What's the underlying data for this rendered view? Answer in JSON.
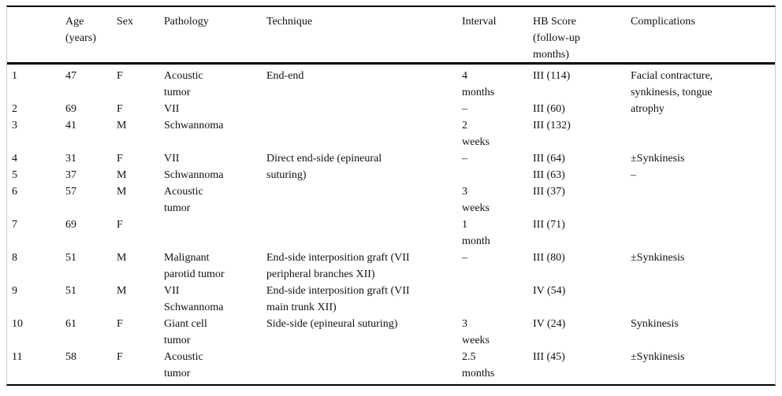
{
  "table": {
    "title": "Patient outcomes table",
    "header_columns": [
      {
        "key": "num",
        "lines": []
      },
      {
        "key": "age",
        "lines": [
          "Age",
          "(years)"
        ]
      },
      {
        "key": "sex",
        "lines": [
          "Sex"
        ]
      },
      {
        "key": "pathology",
        "lines": [
          "Pathology"
        ]
      },
      {
        "key": "technique",
        "lines": [
          "Technique"
        ]
      },
      {
        "key": "interval",
        "lines": [
          "Interval"
        ]
      },
      {
        "key": "hb_score",
        "lines": [
          "HB Score",
          "(follow-up",
          "months)"
        ]
      },
      {
        "key": "complications",
        "lines": [
          "Complications"
        ]
      }
    ],
    "body_lines": [
      [
        "1",
        "47",
        "F",
        "Acoustic",
        "End-end",
        "4",
        "III (114)",
        "Facial contracture,"
      ],
      [
        "",
        "",
        "",
        "tumor",
        "",
        "months",
        "",
        "synkinesis, tongue"
      ],
      [
        "2",
        "69",
        "F",
        "VII",
        "",
        "–",
        "III (60)",
        "atrophy"
      ],
      [
        "3",
        "41",
        "M",
        "Schwannoma",
        "",
        "2",
        "III (132)",
        ""
      ],
      [
        "",
        "",
        "",
        "",
        "",
        "weeks",
        "",
        ""
      ],
      [
        "4",
        "31",
        "F",
        "VII",
        "Direct end-side (epineural",
        "–",
        "III (64)",
        "±Synkinesis"
      ],
      [
        "5",
        "37",
        "M",
        "Schwannoma",
        "suturing)",
        "",
        "III (63)",
        "–"
      ],
      [
        "6",
        "57",
        "M",
        "Acoustic",
        "",
        "3",
        "III (37)",
        ""
      ],
      [
        "",
        "",
        "",
        "tumor",
        "",
        "weeks",
        "",
        ""
      ],
      [
        "7",
        "69",
        "F",
        "",
        "",
        "1",
        "III (71)",
        ""
      ],
      [
        "",
        "",
        "",
        "",
        "",
        "month",
        "",
        ""
      ],
      [
        "8",
        "51",
        "M",
        "Malignant",
        "End-side interposition graft (VII",
        "–",
        "III (80)",
        "±Synkinesis"
      ],
      [
        "",
        "",
        "",
        "parotid tumor",
        "peripheral branches XII)",
        "",
        "",
        ""
      ],
      [
        "9",
        "51",
        "M",
        "VII",
        "End-side interposition graft (VII",
        "",
        "IV (54)",
        ""
      ],
      [
        "",
        "",
        "",
        "Schwannoma",
        "main trunk XII)",
        "",
        "",
        ""
      ],
      [
        "10",
        "61",
        "F",
        "Giant cell",
        "Side-side (epineural suturing)",
        "3",
        "IV (24)",
        "Synkinesis"
      ],
      [
        "",
        "",
        "",
        "tumor",
        "",
        "weeks",
        "",
        ""
      ],
      [
        "11",
        "58",
        "F",
        "Acoustic",
        "",
        "2.5",
        "III (45)",
        "±Synkinesis"
      ],
      [
        "",
        "",
        "",
        "tumor",
        "",
        "months",
        "",
        ""
      ]
    ],
    "colors": {
      "rule": "#000000",
      "frame": "#c9c9c9",
      "text": "#111111",
      "background": "#ffffff"
    }
  }
}
